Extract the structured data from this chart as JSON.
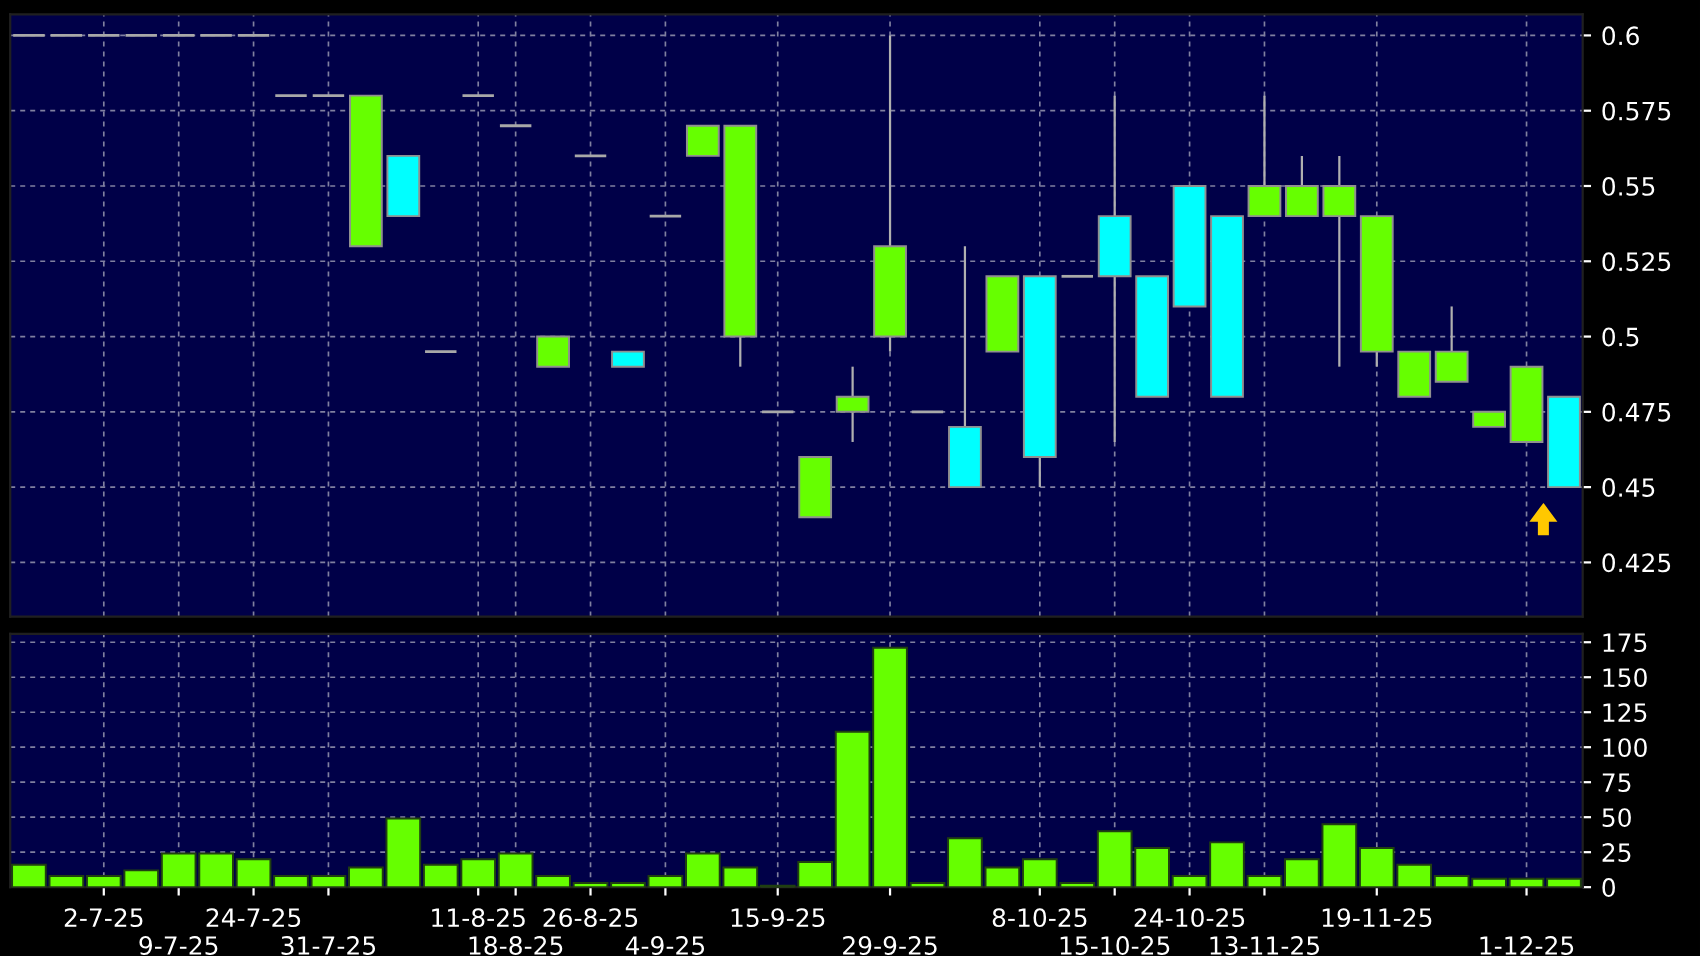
{
  "chart_data": [
    {
      "type": "candlestick",
      "categories": [
        null,
        null,
        null,
        null,
        null,
        null,
        null,
        null,
        null,
        null,
        null,
        null,
        null,
        null,
        null,
        null,
        null,
        null,
        null,
        null,
        null,
        null,
        null,
        null,
        null,
        null,
        null,
        null,
        null,
        null,
        null,
        null,
        null,
        null,
        null,
        null,
        null,
        null,
        null,
        null,
        null,
        null
      ],
      "ohlc": [
        [
          0.6,
          0.6,
          0.6,
          0.6
        ],
        [
          0.6,
          0.6,
          0.6,
          0.6
        ],
        [
          0.6,
          0.6,
          0.6,
          0.6
        ],
        [
          0.6,
          0.6,
          0.6,
          0.6
        ],
        [
          0.6,
          0.6,
          0.6,
          0.6
        ],
        [
          0.6,
          0.6,
          0.6,
          0.6
        ],
        [
          0.6,
          0.6,
          0.6,
          0.6
        ],
        [
          0.58,
          0.58,
          0.58,
          0.58
        ],
        [
          0.58,
          0.58,
          0.58,
          0.58
        ],
        [
          0.53,
          0.58,
          0.53,
          0.58
        ],
        [
          0.56,
          0.56,
          0.54,
          0.54
        ],
        [
          0.495,
          0.495,
          0.495,
          0.495
        ],
        [
          0.58,
          0.58,
          0.58,
          0.58
        ],
        [
          0.57,
          0.57,
          0.57,
          0.57
        ],
        [
          0.49,
          0.5,
          0.49,
          0.5
        ],
        [
          0.56,
          0.56,
          0.56,
          0.56
        ],
        [
          0.495,
          0.495,
          0.49,
          0.49
        ],
        [
          0.54,
          0.54,
          0.54,
          0.54
        ],
        [
          0.56,
          0.57,
          0.56,
          0.57
        ],
        [
          0.5,
          0.57,
          0.49,
          0.57
        ],
        [
          0.475,
          0.475,
          0.475,
          0.475
        ],
        [
          0.44,
          0.46,
          0.44,
          0.46
        ],
        [
          0.475,
          0.49,
          0.465,
          0.48
        ],
        [
          0.5,
          0.6,
          0.495,
          0.53
        ],
        [
          0.475,
          0.475,
          0.475,
          0.475
        ],
        [
          0.47,
          0.53,
          0.45,
          0.45
        ],
        [
          0.495,
          0.52,
          0.495,
          0.52
        ],
        [
          0.52,
          0.52,
          0.45,
          0.46
        ],
        [
          0.52,
          0.52,
          0.52,
          0.52
        ],
        [
          0.54,
          0.58,
          0.465,
          0.52
        ],
        [
          0.52,
          0.52,
          0.48,
          0.48
        ],
        [
          0.55,
          0.55,
          0.51,
          0.51
        ],
        [
          0.54,
          0.54,
          0.48,
          0.48
        ],
        [
          0.54,
          0.58,
          0.54,
          0.55
        ],
        [
          0.54,
          0.56,
          0.54,
          0.55
        ],
        [
          0.54,
          0.56,
          0.49,
          0.55
        ],
        [
          0.495,
          0.54,
          0.49,
          0.54
        ],
        [
          0.48,
          0.495,
          0.48,
          0.495
        ],
        [
          0.485,
          0.51,
          0.485,
          0.495
        ],
        [
          0.47,
          0.475,
          0.47,
          0.475
        ],
        [
          0.465,
          0.49,
          0.465,
          0.49
        ],
        [
          0.48,
          0.48,
          0.45,
          0.45
        ]
      ],
      "colors": [
        "#a8a8a8",
        "#a8a8a8",
        "#a8a8a8",
        "#a8a8a8",
        "#a8a8a8",
        "#a8a8a8",
        "#a8a8a8",
        "#a8a8a8",
        "#a8a8a8",
        "#66ff00",
        "#00ffff",
        "#a8a8a8",
        "#a8a8a8",
        "#a8a8a8",
        "#66ff00",
        "#a8a8a8",
        "#00ffff",
        "#a8a8a8",
        "#66ff00",
        "#66ff00",
        "#a8a8a8",
        "#66ff00",
        "#66ff00",
        "#66ff00",
        "#a8a8a8",
        "#00ffff",
        "#66ff00",
        "#00ffff",
        "#a8a8a8",
        "#00ffff",
        "#00ffff",
        "#00ffff",
        "#00ffff",
        "#66ff00",
        "#66ff00",
        "#66ff00",
        "#66ff00",
        "#66ff00",
        "#66ff00",
        "#66ff00",
        "#66ff00",
        "#00ffff"
      ],
      "ylim": [
        0.407,
        0.607
      ],
      "yticks": [
        0.425,
        0.45,
        0.475,
        0.5,
        0.525,
        0.55,
        0.575,
        0.6
      ],
      "grid": true,
      "tick_labels": "y"
    },
    {
      "type": "bar",
      "categories": [
        null,
        null,
        "2-7-25",
        null,
        "9-7-25",
        null,
        "24-7-25",
        null,
        "31-7-25",
        null,
        null,
        null,
        "11-8-25",
        "18-8-25",
        null,
        "26-8-25",
        null,
        "4-9-25",
        null,
        null,
        "15-9-25",
        null,
        null,
        "29-9-25",
        null,
        null,
        null,
        "8-10-25",
        null,
        "15-10-25",
        null,
        "24-10-25",
        null,
        "13-11-25",
        null,
        null,
        "19-11-25",
        null,
        null,
        null,
        "1-12-25",
        null
      ],
      "values": [
        16,
        8,
        8,
        12,
        24,
        24,
        20,
        8,
        8,
        14,
        49,
        16,
        20,
        24,
        8,
        3,
        3,
        8,
        24,
        14,
        1,
        18,
        111,
        171,
        3,
        35,
        14,
        20,
        3,
        40,
        28,
        8,
        32,
        8,
        20,
        45,
        28,
        16,
        8,
        6,
        6,
        6
      ],
      "color": "#66ff00",
      "ylim": [
        0,
        181
      ],
      "yticks": [
        0,
        25,
        50,
        75,
        100,
        125,
        150,
        175
      ],
      "grid": true
    }
  ]
}
